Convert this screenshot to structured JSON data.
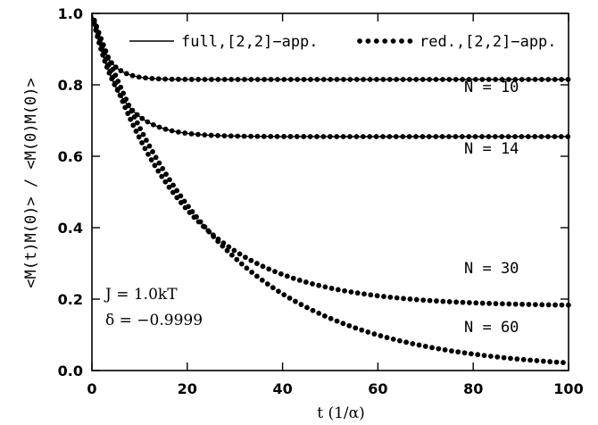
{
  "chart_data": {
    "type": "line",
    "xlabel": "t  (1/α)",
    "ylabel": "<M(t)M(0)> / <M(0)M(0)>",
    "xlim": [
      0,
      100
    ],
    "ylim": [
      0.0,
      1.0
    ],
    "xticks": [
      0,
      20,
      40,
      60,
      80,
      100
    ],
    "yticks": [
      0.0,
      0.2,
      0.4,
      0.6,
      0.8,
      1.0
    ],
    "ytick_labels": [
      "0.0",
      "0.2",
      "0.4",
      "0.6",
      "0.8",
      "1.0"
    ],
    "grid": false,
    "legend_position": "top",
    "legend": [
      {
        "label": "full,[2,2]−app.",
        "style": "solid"
      },
      {
        "label": "red.,[2,2]−app.",
        "style": "dotted"
      }
    ],
    "annotations": [
      "J = 1.0kT",
      "δ = −0.9999"
    ],
    "series": [
      {
        "label": "N = 10",
        "plateau": 0.815,
        "tau": 3.0,
        "has_solid": true
      },
      {
        "label": "N = 14",
        "plateau": 0.655,
        "tau": 5.5,
        "has_solid": true
      },
      {
        "label": "N = 30",
        "plateau": 0.18,
        "tau": 18.0,
        "has_solid": false
      },
      {
        "label": "N = 60",
        "plateau": 0.0,
        "tau": 26.0,
        "has_solid": false
      }
    ]
  },
  "colors": {
    "line": "#000000",
    "background": "#ffffff"
  }
}
